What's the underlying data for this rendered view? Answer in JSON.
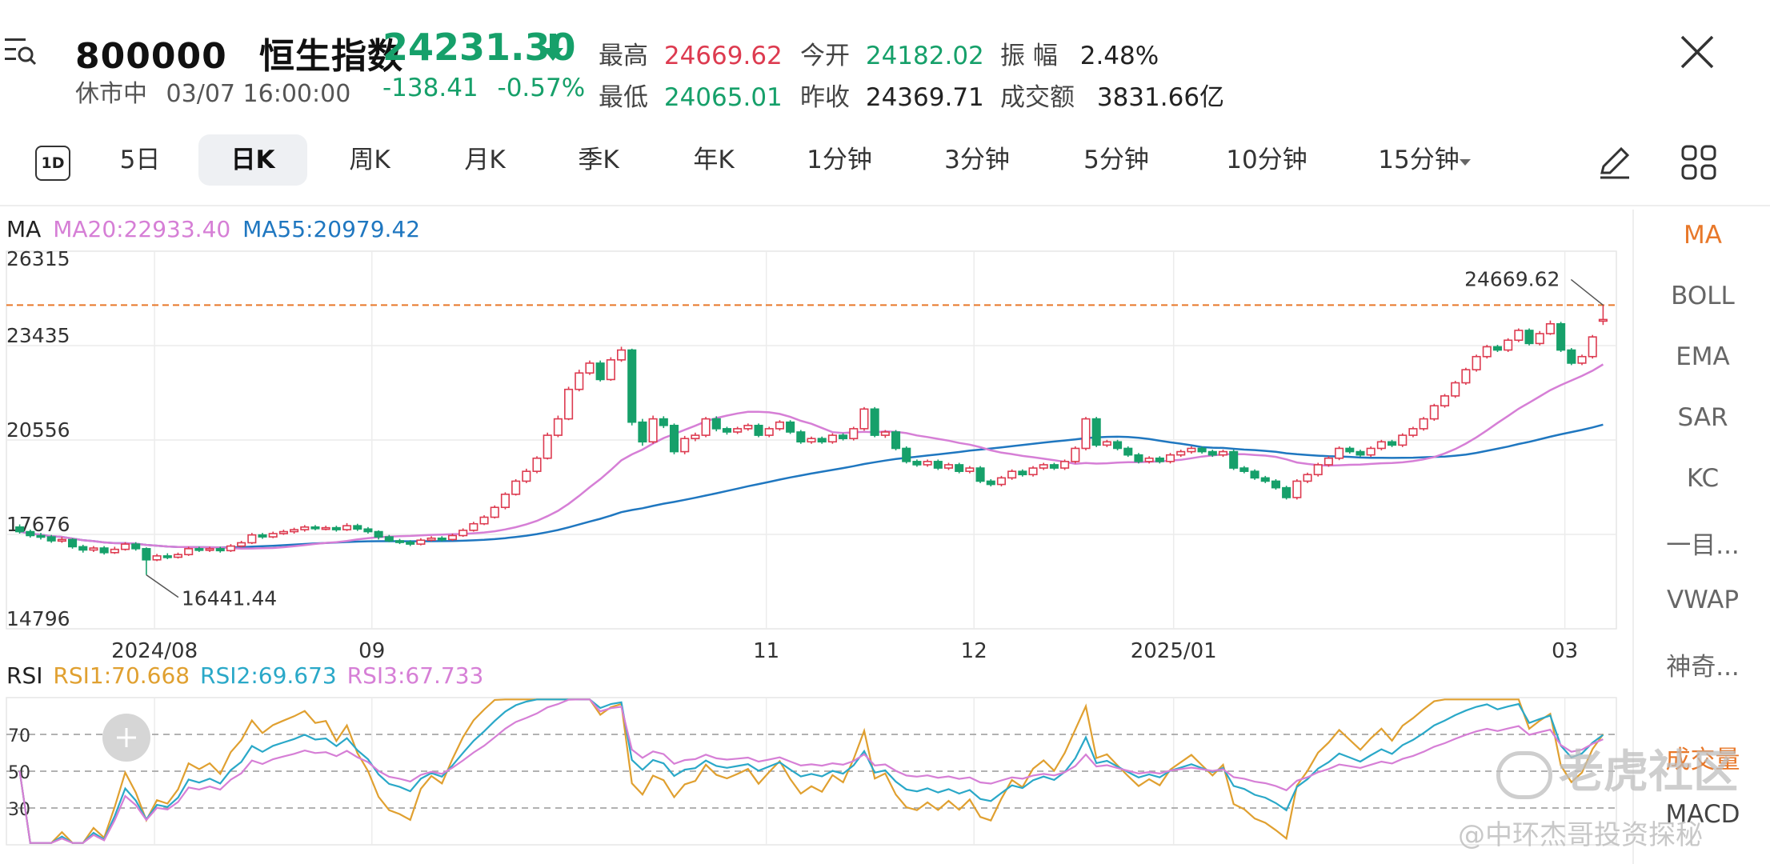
{
  "header": {
    "code": "800000",
    "name": "恒生指数",
    "status": "休市中",
    "datetime": "03/07 16:00:00",
    "price": "24231.30",
    "change": "-138.41",
    "change_pct": "-0.57%",
    "high_label": "最高",
    "high": "24669.62",
    "low_label": "最低",
    "low": "24065.01",
    "open_label": "今开",
    "open": "24182.02",
    "prev_label": "昨收",
    "prev": "24369.71",
    "amp_label": "振 幅",
    "amp": "2.48%",
    "turnover_label": "成交额",
    "turnover": "3831.66亿"
  },
  "tabs": [
    {
      "label": "5日"
    },
    {
      "label": "日K"
    },
    {
      "label": "周K"
    },
    {
      "label": "月K"
    },
    {
      "label": "季K"
    },
    {
      "label": "年K"
    },
    {
      "label": "1分钟"
    },
    {
      "label": "3分钟"
    },
    {
      "label": "5分钟"
    },
    {
      "label": "10分钟"
    },
    {
      "label": "15分钟"
    }
  ],
  "period_icon_label": "1D",
  "indicators": [
    "MA",
    "BOLL",
    "EMA",
    "SAR",
    "KC",
    "一目...",
    "VWAP",
    "神奇...",
    "成交量",
    "MACD"
  ],
  "ma_legend": {
    "title": "MA",
    "ma20": "MA20:22933.40",
    "ma55": "MA55:20979.42"
  },
  "rsi_legend": {
    "title": "RSI",
    "rsi1": "RSI1:70.668",
    "rsi2": "RSI2:69.673",
    "rsi3": "RSI3:67.733"
  },
  "price_axis": [
    "26315",
    "23435",
    "20556",
    "17676",
    "14796"
  ],
  "date_axis": [
    "2024/08",
    "09",
    "11",
    "12",
    "2025/01",
    "03"
  ],
  "rsi_axis": [
    "70",
    "50",
    "30"
  ],
  "annotations": {
    "max": "24669.62",
    "min": "16441.44"
  },
  "watermark": {
    "brand": "老虎社区",
    "author": "@中环杰哥投资探秘"
  },
  "colors": {
    "up": "#dd3b50",
    "down": "#16a06a",
    "ma20": "#d67fd6",
    "ma55": "#1f77c0",
    "rsi1": "#e0a030",
    "rsi2": "#2aa8c8",
    "rsi3": "#d67fd6",
    "refline": "#e8782a"
  },
  "chart_data": {
    "type": "candlestick",
    "ylim": [
      14796,
      26315
    ],
    "candles": [
      [
        17900,
        17760,
        17980,
        17700
      ],
      [
        17760,
        17640,
        17820,
        17580
      ],
      [
        17640,
        17600,
        17720,
        17520
      ],
      [
        17600,
        17480,
        17660,
        17420
      ],
      [
        17480,
        17520,
        17600,
        17420
      ],
      [
        17520,
        17300,
        17560,
        17240
      ],
      [
        17300,
        17200,
        17360,
        17120
      ],
      [
        17200,
        17260,
        17320,
        17140
      ],
      [
        17260,
        17120,
        17320,
        17060
      ],
      [
        17120,
        17220,
        17300,
        17080
      ],
      [
        17220,
        17380,
        17440,
        17180
      ],
      [
        17380,
        17240,
        17440,
        17180
      ],
      [
        17240,
        16900,
        17280,
        16441
      ],
      [
        16900,
        17020,
        17080,
        16860
      ],
      [
        17020,
        16980,
        17100,
        16920
      ],
      [
        16980,
        17060,
        17120,
        16940
      ],
      [
        17060,
        17240,
        17300,
        17020
      ],
      [
        17240,
        17200,
        17300,
        17140
      ],
      [
        17200,
        17240,
        17300,
        17140
      ],
      [
        17240,
        17180,
        17300,
        17120
      ],
      [
        17180,
        17320,
        17380,
        17140
      ],
      [
        17320,
        17420,
        17480,
        17280
      ],
      [
        17420,
        17660,
        17720,
        17380
      ],
      [
        17660,
        17600,
        17720,
        17540
      ],
      [
        17600,
        17700,
        17760,
        17560
      ],
      [
        17700,
        17760,
        17820,
        17660
      ],
      [
        17760,
        17820,
        17880,
        17700
      ],
      [
        17820,
        17900,
        17960,
        17760
      ],
      [
        17900,
        17860,
        17960,
        17800
      ],
      [
        17860,
        17880,
        17940,
        17800
      ],
      [
        17880,
        17820,
        17940,
        17760
      ],
      [
        17820,
        17940,
        18020,
        17780
      ],
      [
        17940,
        17840,
        18000,
        17780
      ],
      [
        17840,
        17760,
        17900,
        17700
      ],
      [
        17760,
        17600,
        17800,
        17520
      ],
      [
        17600,
        17480,
        17660,
        17440
      ],
      [
        17480,
        17440,
        17540,
        17380
      ],
      [
        17440,
        17380,
        17500,
        17320
      ],
      [
        17380,
        17500,
        17560,
        17340
      ],
      [
        17500,
        17560,
        17620,
        17460
      ],
      [
        17560,
        17520,
        17620,
        17460
      ],
      [
        17520,
        17640,
        17700,
        17480
      ],
      [
        17640,
        17800,
        17860,
        17600
      ],
      [
        17800,
        18000,
        18060,
        17760
      ],
      [
        18000,
        18200,
        18260,
        17960
      ],
      [
        18200,
        18500,
        18560,
        18160
      ],
      [
        18500,
        18900,
        18960,
        18440
      ],
      [
        18900,
        19300,
        19360,
        18860
      ],
      [
        19300,
        19600,
        19680,
        19240
      ],
      [
        19600,
        20000,
        20060,
        19540
      ],
      [
        20000,
        20700,
        20780,
        19960
      ],
      [
        20700,
        21200,
        21300,
        20640
      ],
      [
        21200,
        22100,
        22180,
        21160
      ],
      [
        22100,
        22600,
        22700,
        22040
      ],
      [
        22600,
        22900,
        22980,
        22540
      ],
      [
        22900,
        22400,
        22980,
        22340
      ],
      [
        22400,
        23000,
        23080,
        22360
      ],
      [
        23000,
        23300,
        23400,
        22940
      ],
      [
        23300,
        21100,
        23340,
        21000
      ],
      [
        21100,
        20500,
        21200,
        20380
      ],
      [
        20500,
        21200,
        21300,
        20440
      ],
      [
        21200,
        21000,
        21280,
        20920
      ],
      [
        21000,
        20200,
        21060,
        20120
      ],
      [
        20200,
        20600,
        20680,
        20120
      ],
      [
        20600,
        20700,
        20780,
        20520
      ],
      [
        20700,
        21200,
        21260,
        20640
      ],
      [
        21200,
        20900,
        21280,
        20820
      ],
      [
        20900,
        20800,
        20960,
        20720
      ],
      [
        20800,
        20900,
        20960,
        20740
      ],
      [
        20900,
        21000,
        21060,
        20840
      ],
      [
        21000,
        20700,
        21060,
        20640
      ],
      [
        20700,
        20900,
        20960,
        20640
      ],
      [
        20900,
        21100,
        21160,
        20840
      ],
      [
        21100,
        20800,
        21160,
        20740
      ],
      [
        20800,
        20500,
        20860,
        20440
      ],
      [
        20500,
        20600,
        20660,
        20440
      ],
      [
        20600,
        20500,
        20660,
        20440
      ],
      [
        20500,
        20700,
        20760,
        20440
      ],
      [
        20700,
        20600,
        20760,
        20540
      ],
      [
        20600,
        20900,
        20960,
        20540
      ],
      [
        20900,
        21500,
        21560,
        20840
      ],
      [
        21500,
        20700,
        21560,
        20640
      ],
      [
        20700,
        20800,
        20860,
        20620
      ],
      [
        20800,
        20300,
        20860,
        20240
      ],
      [
        20300,
        19900,
        20360,
        19840
      ],
      [
        19900,
        19800,
        19960,
        19740
      ],
      [
        19800,
        19900,
        19960,
        19740
      ],
      [
        19900,
        19700,
        19960,
        19640
      ],
      [
        19700,
        19800,
        19860,
        19640
      ],
      [
        19800,
        19600,
        19860,
        19540
      ],
      [
        19600,
        19700,
        19760,
        19540
      ],
      [
        19700,
        19300,
        19760,
        19240
      ],
      [
        19300,
        19200,
        19360,
        19140
      ],
      [
        19200,
        19400,
        19460,
        19140
      ],
      [
        19400,
        19600,
        19660,
        19340
      ],
      [
        19600,
        19500,
        19660,
        19440
      ],
      [
        19500,
        19700,
        19760,
        19440
      ],
      [
        19700,
        19800,
        19860,
        19640
      ],
      [
        19800,
        19700,
        19860,
        19640
      ],
      [
        19700,
        19900,
        19960,
        19640
      ],
      [
        19900,
        20300,
        20360,
        19840
      ],
      [
        20300,
        21200,
        21260,
        20240
      ],
      [
        21200,
        20400,
        21260,
        20340
      ],
      [
        20400,
        20500,
        20560,
        20340
      ],
      [
        20500,
        20300,
        20560,
        20240
      ],
      [
        20300,
        20100,
        20360,
        20040
      ],
      [
        20100,
        19900,
        20160,
        19840
      ],
      [
        19900,
        20000,
        20060,
        19840
      ],
      [
        20000,
        19900,
        20060,
        19840
      ],
      [
        19900,
        20100,
        20160,
        19840
      ],
      [
        20100,
        20200,
        20260,
        20040
      ],
      [
        20200,
        20300,
        20360,
        20140
      ],
      [
        20300,
        20200,
        20360,
        20140
      ],
      [
        20200,
        20100,
        20260,
        20040
      ],
      [
        20100,
        20200,
        20260,
        20040
      ],
      [
        20200,
        19700,
        20260,
        19640
      ],
      [
        19700,
        19600,
        19760,
        19540
      ],
      [
        19600,
        19400,
        19660,
        19340
      ],
      [
        19400,
        19300,
        19460,
        19240
      ],
      [
        19300,
        19100,
        19360,
        19040
      ],
      [
        19100,
        18800,
        19160,
        18740
      ],
      [
        18800,
        19300,
        19360,
        18740
      ],
      [
        19300,
        19500,
        19560,
        19240
      ],
      [
        19500,
        19800,
        19860,
        19440
      ],
      [
        19800,
        20000,
        20060,
        19740
      ],
      [
        20000,
        20300,
        20360,
        19940
      ],
      [
        20300,
        20200,
        20360,
        20140
      ],
      [
        20200,
        20100,
        20260,
        20040
      ],
      [
        20100,
        20300,
        20360,
        20040
      ],
      [
        20300,
        20500,
        20560,
        20240
      ],
      [
        20500,
        20400,
        20560,
        20340
      ],
      [
        20400,
        20700,
        20760,
        20340
      ],
      [
        20700,
        20900,
        20960,
        20640
      ],
      [
        20900,
        21200,
        21260,
        20840
      ],
      [
        21200,
        21600,
        21660,
        21140
      ],
      [
        21600,
        21900,
        21960,
        21540
      ],
      [
        21900,
        22300,
        22360,
        21840
      ],
      [
        22300,
        22700,
        22760,
        22240
      ],
      [
        22700,
        23100,
        23160,
        22640
      ],
      [
        23100,
        23400,
        23460,
        23040
      ],
      [
        23400,
        23300,
        23460,
        23240
      ],
      [
        23300,
        23600,
        23660,
        23240
      ],
      [
        23600,
        23900,
        23960,
        23540
      ],
      [
        23900,
        23500,
        23960,
        23440
      ],
      [
        23500,
        23800,
        23880,
        23440
      ],
      [
        23800,
        24100,
        24200,
        23760
      ],
      [
        24100,
        23300,
        24160,
        23240
      ],
      [
        23300,
        22900,
        23360,
        22840
      ],
      [
        22900,
        23100,
        23160,
        22840
      ],
      [
        23100,
        23700,
        23760,
        23040
      ],
      [
        24182,
        24231,
        24669,
        24065
      ]
    ],
    "ma20_last": 22933.4,
    "ma55_last": 20979.42,
    "rsi_last": {
      "rsi1": 70.668,
      "rsi2": 69.673,
      "rsi3": 67.733
    },
    "rsi_ylim": [
      10,
      90
    ]
  }
}
